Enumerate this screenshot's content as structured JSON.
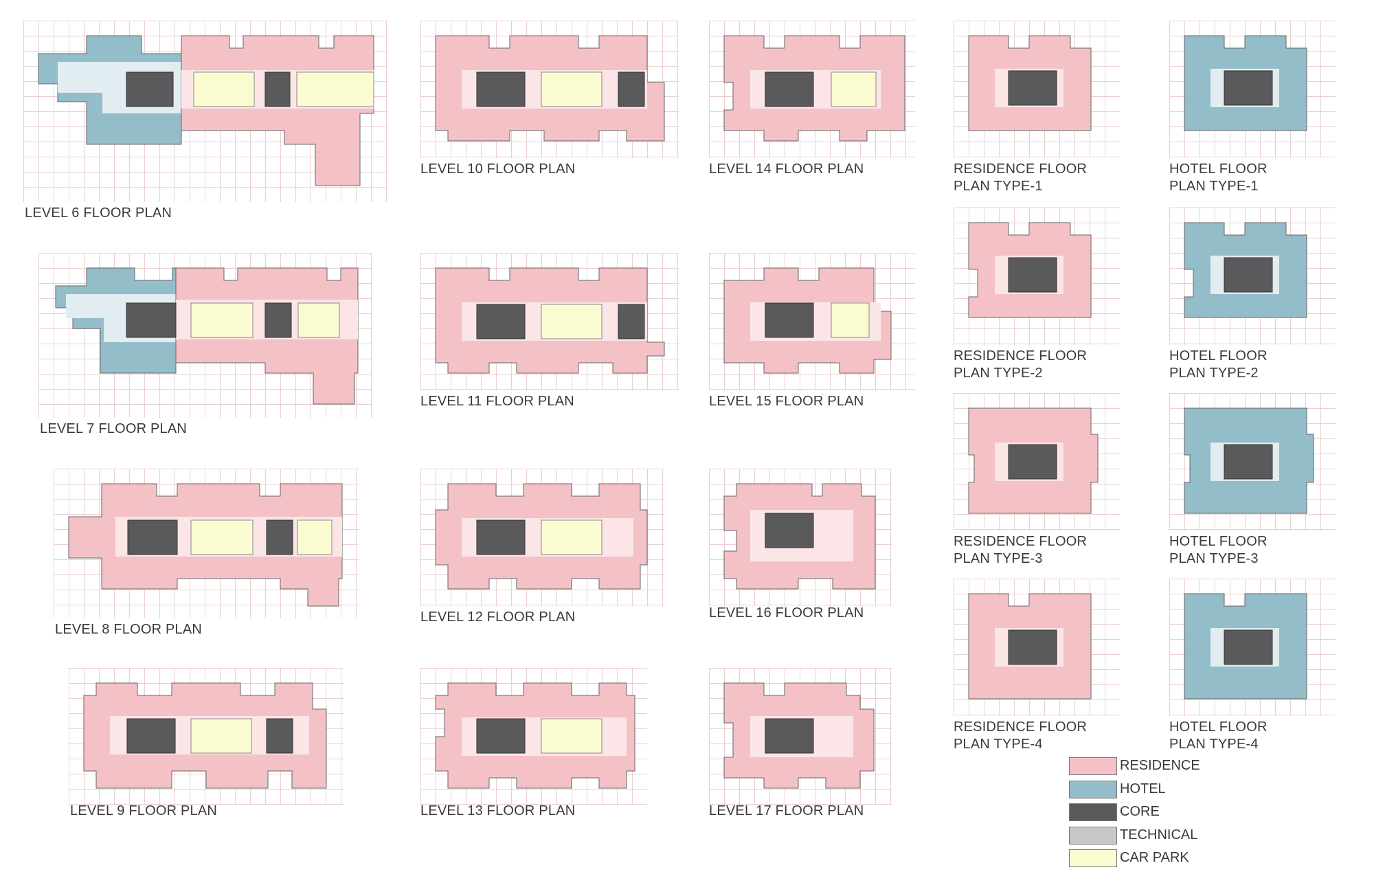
{
  "colors": {
    "residence": "#f4c1c6",
    "hotel": "#93bdc8",
    "core": "#5a5a5c",
    "technical": "#c8c8c8",
    "car_park": "#fbfbd2",
    "corridor": "#fbe5e7",
    "hotel_corridor": "#e1edf0"
  },
  "labels": {
    "level6": "LEVEL 6 FLOOR PLAN",
    "level7": "LEVEL 7 FLOOR PLAN",
    "level8": "LEVEL 8 FLOOR PLAN",
    "level9": "LEVEL 9 FLOOR PLAN",
    "level10": "LEVEL 10 FLOOR PLAN",
    "level11": "LEVEL 11 FLOOR PLAN",
    "level12": "LEVEL 12 FLOOR PLAN",
    "level13": "LEVEL 13 FLOOR PLAN",
    "level14": "LEVEL 14 FLOOR PLAN",
    "level15": "LEVEL 15 FLOOR PLAN",
    "level16": "LEVEL 16 FLOOR PLAN",
    "level17": "LEVEL 17 FLOOR PLAN",
    "res1_a": "RESIDENCE FLOOR",
    "res1_b": "PLAN TYPE-1",
    "res2_a": "RESIDENCE FLOOR",
    "res2_b": "PLAN TYPE-2",
    "res3_a": "RESIDENCE FLOOR",
    "res3_b": "PLAN TYPE-3",
    "res4_a": "RESIDENCE FLOOR",
    "res4_b": "PLAN TYPE-4",
    "hot1_a": "HOTEL FLOOR",
    "hot1_b": "PLAN TYPE-1",
    "hot2_a": "HOTEL FLOOR",
    "hot2_b": "PLAN TYPE-2",
    "hot3_a": "HOTEL FLOOR",
    "hot3_b": "PLAN TYPE-3",
    "hot4_a": "HOTEL FLOOR",
    "hot4_b": "PLAN TYPE-4"
  },
  "legend": [
    {
      "name": "RESIDENCE",
      "color": "#f4c1c6"
    },
    {
      "name": "HOTEL",
      "color": "#93bdc8"
    },
    {
      "name": "CORE",
      "color": "#5a5a5c"
    },
    {
      "name": "TECHNICAL",
      "color": "#c8c8c8"
    },
    {
      "name": "CAR PARK",
      "color": "#fbfbd2"
    }
  ]
}
